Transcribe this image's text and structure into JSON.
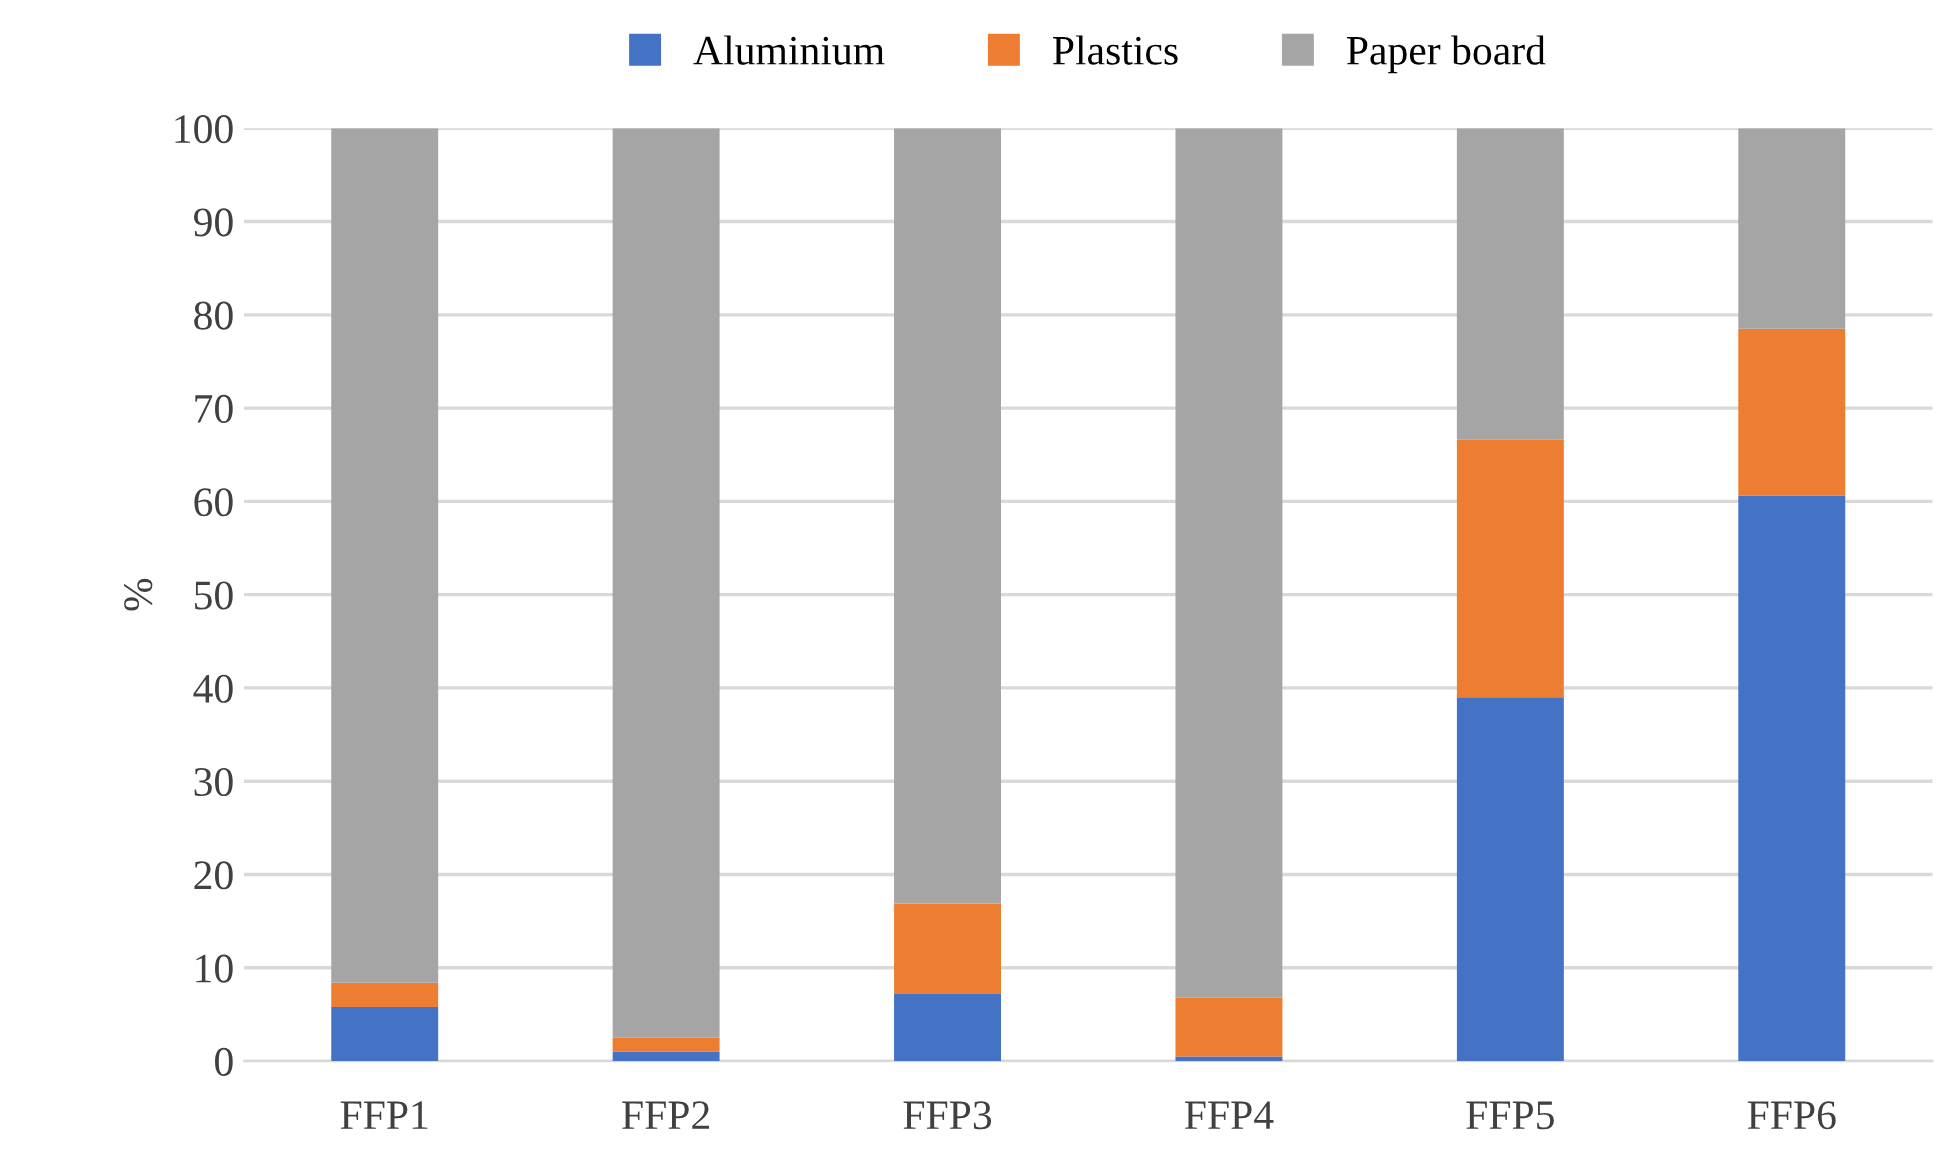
{
  "chart_data": {
    "type": "bar",
    "stacked": true,
    "ylabel": "%",
    "categories": [
      "FFP1",
      "FFP2",
      "FFP3",
      "FFP4",
      "FFP5",
      "FFP6"
    ],
    "series": [
      {
        "name": "Aluminium",
        "color": "#4472c4",
        "values": [
          5.8,
          1.0,
          7.2,
          0.5,
          39.0,
          60.6
        ]
      },
      {
        "name": "Plastics",
        "color": "#ed7d31",
        "values": [
          2.6,
          1.5,
          9.7,
          6.3,
          27.6,
          17.9
        ]
      },
      {
        "name": "Paper board",
        "color": "#a5a5a5",
        "values": [
          91.6,
          97.5,
          83.1,
          93.2,
          33.4,
          21.5
        ]
      }
    ],
    "ylim": [
      0,
      100
    ],
    "yticks": [
      0,
      10,
      20,
      30,
      40,
      50,
      60,
      70,
      80,
      90,
      100
    ],
    "grid": "y",
    "legend": "top"
  }
}
